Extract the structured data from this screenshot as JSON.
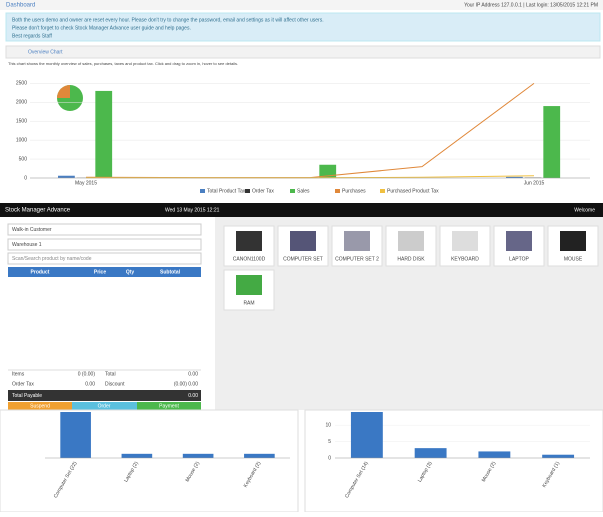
{
  "header": {
    "title": "Dashboard",
    "login": "Your IP Address 127.0.0.1 | Last login: 13/05/2015 12:21 PM"
  },
  "alert": {
    "lines": [
      "Both the users demo and owner are reset every hour. Please don't try to change the password, email and settings as it will affect other users.",
      "Please don't forget to check Stock Manager Advance user guide and help pages.",
      "Best regards Staff"
    ]
  },
  "overview": {
    "title": "Overview Chart",
    "subtitle": "This chart shows the monthly overview of sales, purchases, taxes and product tax. Click and drag to zoom in, hover to see details.",
    "chart": {
      "type": "bar",
      "categories": [
        "May 2015",
        null,
        null,
        null,
        "Jun 2015"
      ],
      "ylim": [
        0,
        2800
      ],
      "yticks": [
        0,
        500,
        1000,
        1500,
        2000,
        2500
      ],
      "series": [
        {
          "name": "Total Product Tax",
          "color": "#4a7fc1",
          "type": "bar",
          "values": [
            60,
            0,
            5,
            0,
            30
          ]
        },
        {
          "name": "Order Tax",
          "color": "#333333",
          "type": "bar",
          "values": [
            5,
            0,
            2,
            0,
            10
          ]
        },
        {
          "name": "Sales",
          "color": "#4cb84c",
          "type": "bar",
          "values": [
            2300,
            0,
            350,
            0,
            1900
          ]
        },
        {
          "name": "Purchases",
          "color": "#e0883a",
          "type": "line",
          "values": [
            20,
            10,
            10,
            300,
            2500
          ]
        },
        {
          "name": "Purchased Product Tax",
          "color": "#f0c040",
          "type": "line",
          "values": [
            5,
            5,
            5,
            20,
            60
          ]
        }
      ]
    }
  },
  "pos": {
    "brand": "Stock Manager Advance",
    "time": "Wed 13 May 2015 12:21",
    "user": "Welcome",
    "customer": "Walk-in Customer",
    "warehouse": "Warehouse 1",
    "search": "Scan/Search product by name/code",
    "columns": [
      "Product",
      "Price",
      "Qty",
      "Subtotal"
    ],
    "items_label": "Items",
    "items_value": "0 (0.00)",
    "total_label": "Total",
    "total_value": "0.00",
    "order_tax_label": "Order Tax",
    "order_tax_value": "0.00",
    "discount_label": "Discount",
    "discount_value": "(0.00) 0.00",
    "payable_label": "Total Payable",
    "payable_value": "0.00",
    "buttons": [
      "Suspend",
      "Order",
      "Payment"
    ],
    "products": [
      "CANON1100D",
      "COMPUTER SET",
      "COMPUTER SET 2",
      "HARD DISK",
      "KEYBOARD",
      "LAPTOP",
      "MOUSE",
      "RAM"
    ]
  },
  "best_sellers": [
    {
      "type": "bar",
      "color": "#3a78c4",
      "categories": [
        "Computer Set (22)",
        "Laptop (2)",
        "Mouse (2)",
        "Keyboard (2)"
      ],
      "ylim": [
        0,
        22
      ],
      "yticks": [],
      "values": [
        22,
        2,
        2,
        2
      ]
    },
    {
      "type": "bar",
      "color": "#3a78c4",
      "categories": [
        "Computer Set (14)",
        "Laptop (3)",
        "Mouse (2)",
        "Keyboard (1)"
      ],
      "ylim": [
        0,
        14
      ],
      "yticks": [
        0,
        5,
        10
      ],
      "values": [
        14,
        3,
        2,
        1
      ]
    }
  ]
}
